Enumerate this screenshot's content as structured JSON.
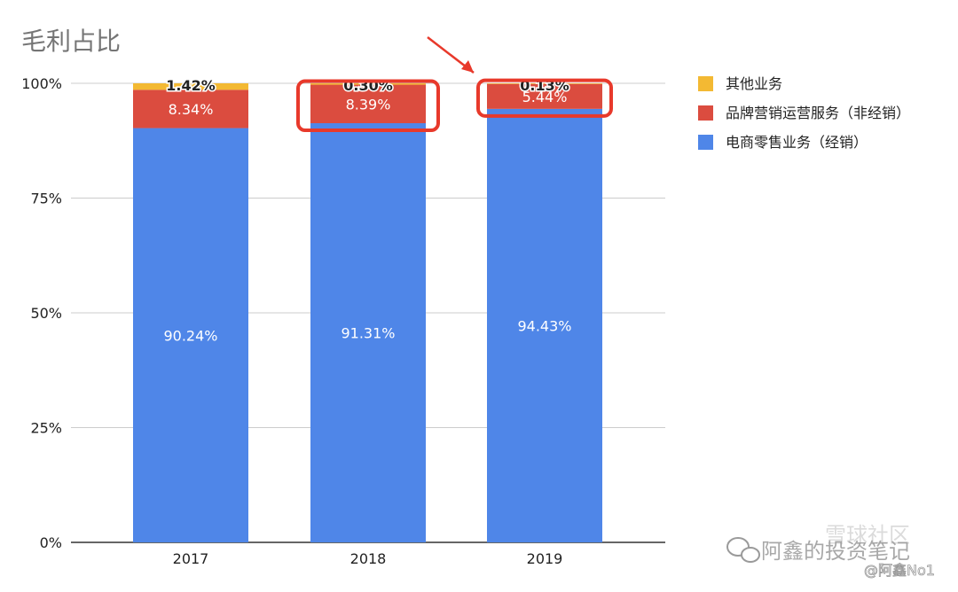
{
  "chart_data": {
    "type": "bar",
    "stacked": true,
    "title": "毛利占比",
    "categories": [
      "2017",
      "2018",
      "2019"
    ],
    "series": [
      {
        "name": "电商零售业务（经销）",
        "values": [
          90.24,
          91.31,
          94.43
        ],
        "labels": [
          "90.24%",
          "91.31%",
          "94.43%"
        ],
        "color": "#4f86e8"
      },
      {
        "name": "品牌营销运营服务（非经销）",
        "values": [
          8.34,
          8.39,
          5.44
        ],
        "labels": [
          "8.34%",
          "8.39%",
          "5.44%"
        ],
        "color": "#db4c3f"
      },
      {
        "name": "其他业务",
        "values": [
          1.42,
          0.3,
          0.13
        ],
        "labels": [
          "1.42%",
          "0.30%",
          "0.13%"
        ],
        "color": "#f3b933"
      }
    ],
    "ylim": [
      0,
      100
    ],
    "yticks": [
      "0%",
      "25%",
      "50%",
      "75%",
      "100%"
    ],
    "grid": true,
    "legend_position": "right",
    "annotations": {
      "highlight_color": "#e8392b",
      "highlighted": [
        {
          "category": "2018",
          "series": "品牌营销运营服务（非经销）"
        },
        {
          "category": "2019",
          "series": "品牌营销运营服务（非经销）"
        }
      ],
      "arrow_target_category": "2019"
    }
  },
  "watermark": {
    "main": "阿鑫的投资笔记",
    "sub": "@阿鑫No1",
    "faint": "雪球社区",
    "icon": "wechat-icon"
  }
}
